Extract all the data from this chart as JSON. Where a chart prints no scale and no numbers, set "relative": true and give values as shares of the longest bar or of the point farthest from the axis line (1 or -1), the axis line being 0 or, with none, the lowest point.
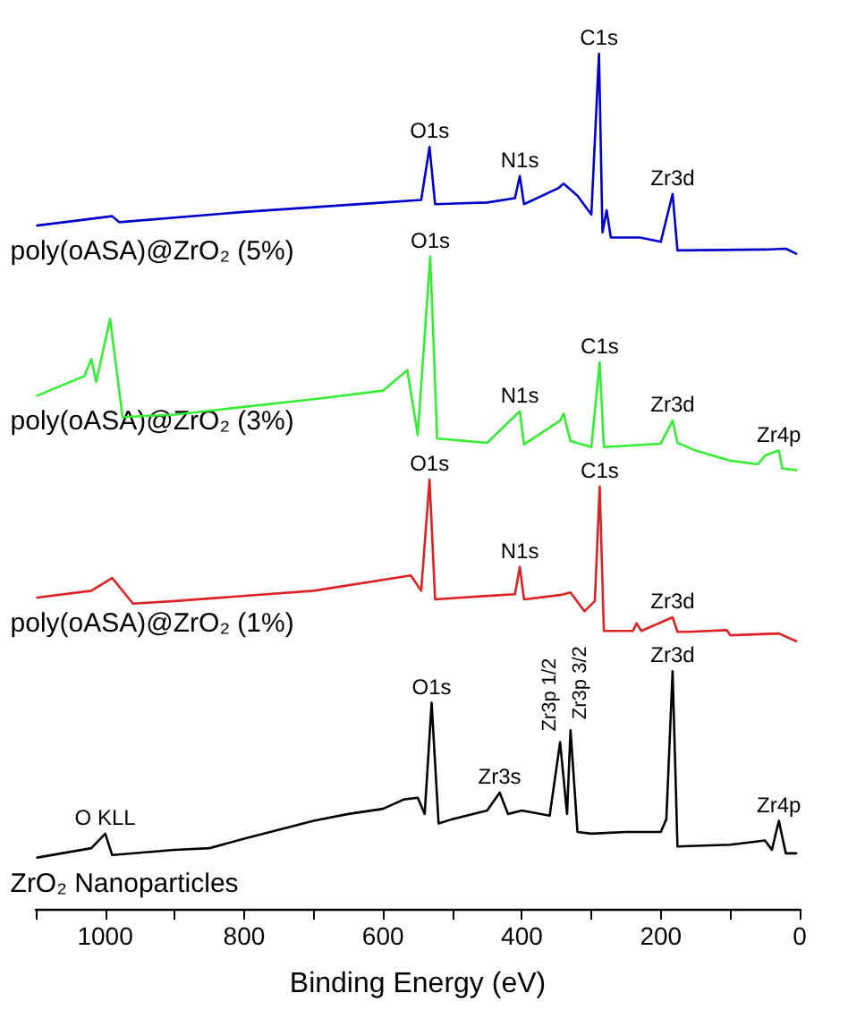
{
  "chart_data": {
    "type": "line",
    "relative": true,
    "xlabel": "Binding Energy (eV)",
    "xlim": [
      1100,
      0
    ],
    "xticks": [
      {
        "value": 1100,
        "label": null
      },
      1000,
      {
        "value": 900,
        "label": null
      },
      800,
      {
        "value": 700,
        "label": null
      },
      600,
      {
        "value": 500,
        "label": null
      },
      400,
      {
        "value": 300,
        "label": null
      },
      200,
      {
        "value": 100,
        "label": null
      },
      0
    ],
    "grid": false,
    "legend": false,
    "marker": "none",
    "line_style": "solid",
    "series": [
      {
        "name": "poly(oASA)@ZrO₂ (5%)",
        "color": "#0000cc",
        "x": [
          1098,
          990,
          980,
          800,
          600,
          545,
          533,
          525,
          450,
          410,
          403,
          397,
          347,
          340,
          320,
          300,
          289,
          284,
          278,
          272,
          230,
          200,
          183,
          176,
          50,
          20,
          5
        ],
        "values": [
          0.799,
          0.81,
          0.803,
          0.815,
          0.826,
          0.829,
          0.891,
          0.824,
          0.826,
          0.831,
          0.857,
          0.824,
          0.843,
          0.848,
          0.834,
          0.812,
          1.0,
          0.791,
          0.817,
          0.785,
          0.785,
          0.78,
          0.836,
          0.77,
          0.771,
          0.772,
          0.766
        ]
      },
      {
        "name": "poly(oASA)@ZrO₂ (3%)",
        "color": "#33ee33",
        "x": [
          1098,
          1030,
          1020,
          1013,
          993,
          975,
          900,
          700,
          600,
          565,
          550,
          532,
          522,
          450,
          403,
          397,
          345,
          340,
          330,
          300,
          288,
          282,
          200,
          183,
          176,
          150,
          100,
          60,
          50,
          30,
          25,
          5
        ],
        "values": [
          0.6,
          0.623,
          0.643,
          0.616,
          0.69,
          0.575,
          0.578,
          0.596,
          0.606,
          0.63,
          0.554,
          0.763,
          0.55,
          0.545,
          0.582,
          0.543,
          0.571,
          0.579,
          0.547,
          0.54,
          0.639,
          0.54,
          0.544,
          0.571,
          0.545,
          0.536,
          0.524,
          0.52,
          0.53,
          0.536,
          0.515,
          0.513
        ]
      },
      {
        "name": "poly(oASA)@ZrO₂ (1%)",
        "color": "#dd2222",
        "x": [
          1098,
          1020,
          990,
          960,
          900,
          700,
          560,
          545,
          533,
          525,
          450,
          410,
          403,
          397,
          345,
          330,
          310,
          295,
          288,
          282,
          240,
          235,
          228,
          183,
          176,
          160,
          105,
          100,
          30,
          5
        ],
        "values": [
          0.364,
          0.372,
          0.387,
          0.357,
          0.36,
          0.372,
          0.39,
          0.372,
          0.502,
          0.362,
          0.366,
          0.368,
          0.4,
          0.362,
          0.367,
          0.37,
          0.348,
          0.36,
          0.494,
          0.325,
          0.325,
          0.334,
          0.325,
          0.341,
          0.324,
          0.324,
          0.326,
          0.32,
          0.322,
          0.313
        ]
      },
      {
        "name": "ZrO₂ Nanoparticles",
        "color": "#000000",
        "x": [
          1098,
          1020,
          1000,
          990,
          900,
          850,
          800,
          700,
          650,
          600,
          570,
          550,
          540,
          530,
          520,
          500,
          450,
          432,
          420,
          400,
          360,
          345,
          335,
          330,
          320,
          300,
          250,
          200,
          192,
          183,
          176,
          100,
          50,
          40,
          30,
          20,
          5
        ],
        "values": [
          0.06,
          0.071,
          0.088,
          0.063,
          0.069,
          0.071,
          0.082,
          0.103,
          0.111,
          0.117,
          0.128,
          0.13,
          0.111,
          0.241,
          0.1,
          0.105,
          0.115,
          0.136,
          0.111,
          0.115,
          0.109,
          0.195,
          0.111,
          0.209,
          0.09,
          0.088,
          0.09,
          0.09,
          0.105,
          0.278,
          0.073,
          0.075,
          0.08,
          0.069,
          0.103,
          0.065,
          0.065
        ]
      }
    ],
    "annotations": [
      {
        "text": "O1s",
        "x": 533,
        "y": 0.891
      },
      {
        "text": "N1s",
        "x": 403,
        "y": 0.857
      },
      {
        "text": "C1s",
        "x": 289,
        "y": 1.0
      },
      {
        "text": "Zr3d",
        "x": 183,
        "y": 0.836
      },
      {
        "text": "O1s",
        "x": 532,
        "y": 0.763
      },
      {
        "text": "N1s",
        "x": 403,
        "y": 0.582
      },
      {
        "text": "C1s",
        "x": 288,
        "y": 0.639
      },
      {
        "text": "Zr3d",
        "x": 183,
        "y": 0.571
      },
      {
        "text": "Zr4p",
        "x": 30,
        "y": 0.536
      },
      {
        "text": "O1s",
        "x": 533,
        "y": 0.502
      },
      {
        "text": "N1s",
        "x": 403,
        "y": 0.4
      },
      {
        "text": "C1s",
        "x": 288,
        "y": 0.494
      },
      {
        "text": "Zr3d",
        "x": 183,
        "y": 0.341
      },
      {
        "text": "O KLL",
        "x": 1000,
        "y": 0.088
      },
      {
        "text": "O1s",
        "x": 530,
        "y": 0.241
      },
      {
        "text": "Zr3s",
        "x": 432,
        "y": 0.136
      },
      {
        "text": "Zr3p 1/2",
        "x": 345,
        "y": 0.195
      },
      {
        "text": "Zr3p 3/2",
        "x": 330,
        "y": 0.209
      },
      {
        "text": "Zr3d",
        "x": 183,
        "y": 0.278
      },
      {
        "text": "Zr4p",
        "x": 30,
        "y": 0.103
      }
    ]
  }
}
